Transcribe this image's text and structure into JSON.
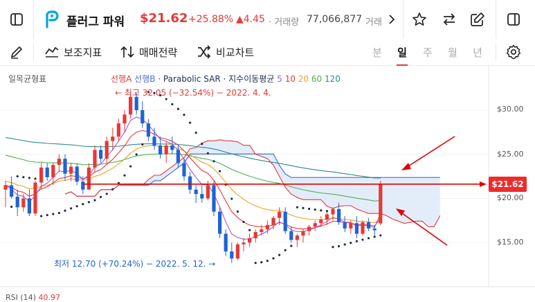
{
  "header": {
    "stock_name": "플러그 파워",
    "price": "$21.62",
    "change_pct": "+25.88%",
    "change_abs": "▲4.45",
    "volume_label": "· 거래량",
    "volume_value": "77,066,877",
    "trailing": "거래"
  },
  "toolbar": {
    "aux_indicator": "보조지표",
    "strategy": "매매전략",
    "compare": "비교차트",
    "periods": [
      "분",
      "일",
      "주",
      "월",
      "년"
    ],
    "active_period": "일"
  },
  "legend": {
    "indicator": "일목균형표",
    "span_a": "선행A",
    "span_b": "선행B",
    "psar": "· Parabolic SAR",
    "ma_label": "· 지수이동평균",
    "ma_periods": [
      "5",
      "10",
      "20",
      "60",
      "120"
    ]
  },
  "annotations": {
    "high": "최고 32.05 (−32.54%) − 2022. 4. 4.",
    "low": "최저 12.70 (+70.24%) − 2022. 5. 12."
  },
  "price_axis": {
    "ticks": [
      "$30.00",
      "$25.00",
      "$20.00",
      "$15.00"
    ],
    "tick_values": [
      30,
      25,
      20,
      15
    ],
    "current": "$21.62",
    "current_value": 21.62
  },
  "rsi": {
    "label": "RSI (14)",
    "value": "40.97"
  },
  "colors": {
    "up": "#e53935",
    "down": "#1e63d6",
    "cloud": "#d9e6f7",
    "span_a": "#e03a3a",
    "span_b": "#4a6fd0",
    "psar": "#1f2d4d",
    "ma5": "#a15bd6",
    "ma10": "#e53935",
    "ma20": "#f0a020",
    "ma60": "#4caf50",
    "ma120": "#2b8a8a",
    "annotation_line": "#e10000"
  },
  "chart_data": {
    "type": "candlestick",
    "y_range": [
      12,
      33
    ],
    "candles_ohlc": [
      [
        21,
        22,
        19,
        21.5
      ],
      [
        21.5,
        22.5,
        20,
        20.2
      ],
      [
        20.2,
        21,
        18,
        19
      ],
      [
        19,
        20.5,
        18.5,
        20
      ],
      [
        20,
        21,
        18,
        18.3
      ],
      [
        18.3,
        22,
        18,
        21.8
      ],
      [
        21.8,
        24,
        21,
        23.5
      ],
      [
        23.5,
        24,
        22,
        22.4
      ],
      [
        22.4,
        24,
        21.5,
        23.8
      ],
      [
        23.8,
        25,
        23,
        24.5
      ],
      [
        24.5,
        25,
        22,
        22.8
      ],
      [
        22.8,
        24,
        22,
        23.6
      ],
      [
        23.6,
        24,
        21.5,
        21.9
      ],
      [
        21.9,
        22.5,
        20.5,
        21
      ],
      [
        21,
        24,
        21,
        23.5
      ],
      [
        23.5,
        26,
        23,
        25.5
      ],
      [
        25.5,
        26,
        24,
        24.5
      ],
      [
        24.5,
        27,
        24,
        26.5
      ],
      [
        26.5,
        28,
        25.5,
        27
      ],
      [
        27,
        29,
        26.5,
        28.5
      ],
      [
        28.5,
        30,
        27.5,
        29.5
      ],
      [
        29.5,
        32.05,
        29,
        31.5
      ],
      [
        31.5,
        32,
        29.5,
        30
      ],
      [
        30,
        31,
        28,
        28.5
      ],
      [
        28.5,
        29,
        26.5,
        27
      ],
      [
        27,
        28,
        25.5,
        26
      ],
      [
        26,
        27,
        24.5,
        25
      ],
      [
        25,
        26.5,
        24,
        26
      ],
      [
        26,
        27,
        25,
        25.5
      ],
      [
        25.5,
        26,
        23.5,
        24
      ],
      [
        24,
        24.5,
        22,
        22.5
      ],
      [
        22.5,
        23,
        20.5,
        21
      ],
      [
        21,
        21.5,
        19.5,
        20.5
      ],
      [
        20.5,
        21.5,
        19.5,
        20
      ],
      [
        20,
        22,
        19.8,
        21.5
      ],
      [
        21.5,
        22,
        18,
        18.5
      ],
      [
        18.5,
        19,
        15.5,
        16
      ],
      [
        16,
        16.5,
        13.5,
        14
      ],
      [
        14,
        15,
        12.7,
        13.2
      ],
      [
        13.2,
        15,
        13,
        14.8
      ],
      [
        14.8,
        15.5,
        14,
        15
      ],
      [
        15,
        16,
        14.5,
        15.5
      ],
      [
        15.5,
        16.5,
        15,
        16.2
      ],
      [
        16.2,
        17,
        15.8,
        16.5
      ],
      [
        16.5,
        17.5,
        16,
        17
      ],
      [
        17,
        18,
        16.5,
        17.8
      ],
      [
        17.8,
        19,
        17,
        18.5
      ],
      [
        18.5,
        19,
        16,
        16.3
      ],
      [
        16.3,
        16.8,
        15,
        15.3
      ],
      [
        15.3,
        16,
        14.5,
        15.8
      ],
      [
        15.8,
        16.5,
        15,
        16.3
      ],
      [
        16.3,
        17,
        15.8,
        16.8
      ],
      [
        16.8,
        17.5,
        16.3,
        17.2
      ],
      [
        17.2,
        18,
        16.8,
        17.6
      ],
      [
        17.6,
        18.5,
        17,
        18.2
      ],
      [
        18.2,
        19,
        17.5,
        18.8
      ],
      [
        18.8,
        19.5,
        17,
        17.3
      ],
      [
        17.3,
        18,
        16.2,
        16.6
      ],
      [
        16.6,
        17.5,
        16,
        17.2
      ],
      [
        17.2,
        18,
        15.5,
        16
      ],
      [
        16,
        17.5,
        15.8,
        17.3
      ],
      [
        17.3,
        17.8,
        16.3,
        16.6
      ],
      [
        16.6,
        17,
        15.8,
        16.4
      ],
      [
        17.17,
        22,
        17,
        21.62
      ]
    ],
    "indicators": [
      "선행A",
      "선행B",
      "Parabolic SAR",
      "지수이동평균 5",
      "10",
      "20",
      "60",
      "120"
    ]
  }
}
